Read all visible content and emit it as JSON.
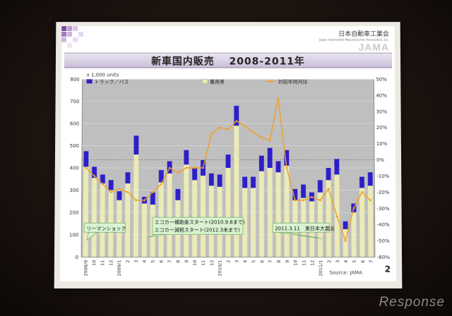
{
  "header": {
    "org_name": "日本自動車工業会",
    "org_sub": "Japan Automobile Manufacturers Association, Inc.",
    "logo_text": "JAMA"
  },
  "page": {
    "title": "新車国内販売　 2008-2011年",
    "number": "2"
  },
  "footer": {
    "source": "Source: JAMA"
  },
  "watermark": "Response",
  "colors": {
    "truck": "#2d1fc8",
    "passenger": "#ecebb8",
    "ratio_line": "#f0a020",
    "title_band": "#c9c0d8"
  },
  "chart_data": {
    "type": "bar",
    "title": "新車国内販売　 2008-2011年",
    "ylabel": "x 1,000 units",
    "ylim": [
      0,
      800
    ],
    "y2lim": [
      -60,
      50
    ],
    "left_ticks": [
      "0",
      "100",
      "200",
      "300",
      "400",
      "500",
      "600",
      "700",
      "800"
    ],
    "right_ticks": [
      "-60%",
      "-50%",
      "-40%",
      "-30%",
      "-20%",
      "-10%",
      "0%",
      "10%",
      "20%",
      "30%",
      "40%",
      "50%"
    ],
    "x_tick_labels": [
      "2008/9",
      "10",
      "11",
      "12",
      "2009/1",
      "2",
      "3",
      "4",
      "5",
      "6",
      "7",
      "8",
      "9",
      "10",
      "11",
      "12",
      "2010/1",
      "2",
      "3",
      "4",
      "5",
      "6",
      "7",
      "8",
      "9",
      "10",
      "11",
      "12",
      "2011/1",
      "2",
      "3",
      "4",
      "5",
      "6",
      "7"
    ],
    "legend": [
      "トラック／バス",
      "乗用車",
      "対前年同月比"
    ],
    "legend_position": "top",
    "grid": true,
    "series": [
      {
        "name": "乗用車",
        "values": [
          405,
          355,
          330,
          300,
          255,
          330,
          460,
          240,
          235,
          335,
          375,
          255,
          415,
          345,
          365,
          320,
          315,
          400,
          590,
          310,
          310,
          385,
          400,
          380,
          410,
          255,
          265,
          250,
          290,
          345,
          370,
          125,
          200,
          310,
          320
        ]
      },
      {
        "name": "トラック／バス",
        "values": [
          70,
          50,
          40,
          45,
          40,
          50,
          85,
          30,
          55,
          55,
          55,
          50,
          65,
          55,
          70,
          55,
          55,
          60,
          90,
          50,
          50,
          70,
          90,
          50,
          70,
          50,
          60,
          40,
          55,
          55,
          70,
          35,
          40,
          50,
          60
        ]
      },
      {
        "name": "対前年同月比",
        "axis": "right",
        "values": [
          -5,
          -10,
          -15,
          -20,
          -18,
          -20,
          -25,
          -25,
          -20,
          -15,
          -5,
          -8,
          -5,
          -5,
          -5,
          16,
          20,
          19,
          24,
          21,
          17,
          14,
          12,
          38,
          -5,
          -25,
          -25,
          -23,
          -25,
          -18,
          -35,
          -50,
          -30,
          -20,
          -25
        ]
      }
    ],
    "annotations": [
      "リーマンショック",
      "エコカー補助金スタート(2010.9.8まで)",
      "エコカー減税スタート(2012.3末まで)",
      "2011.3.11　東日本大震災"
    ]
  }
}
